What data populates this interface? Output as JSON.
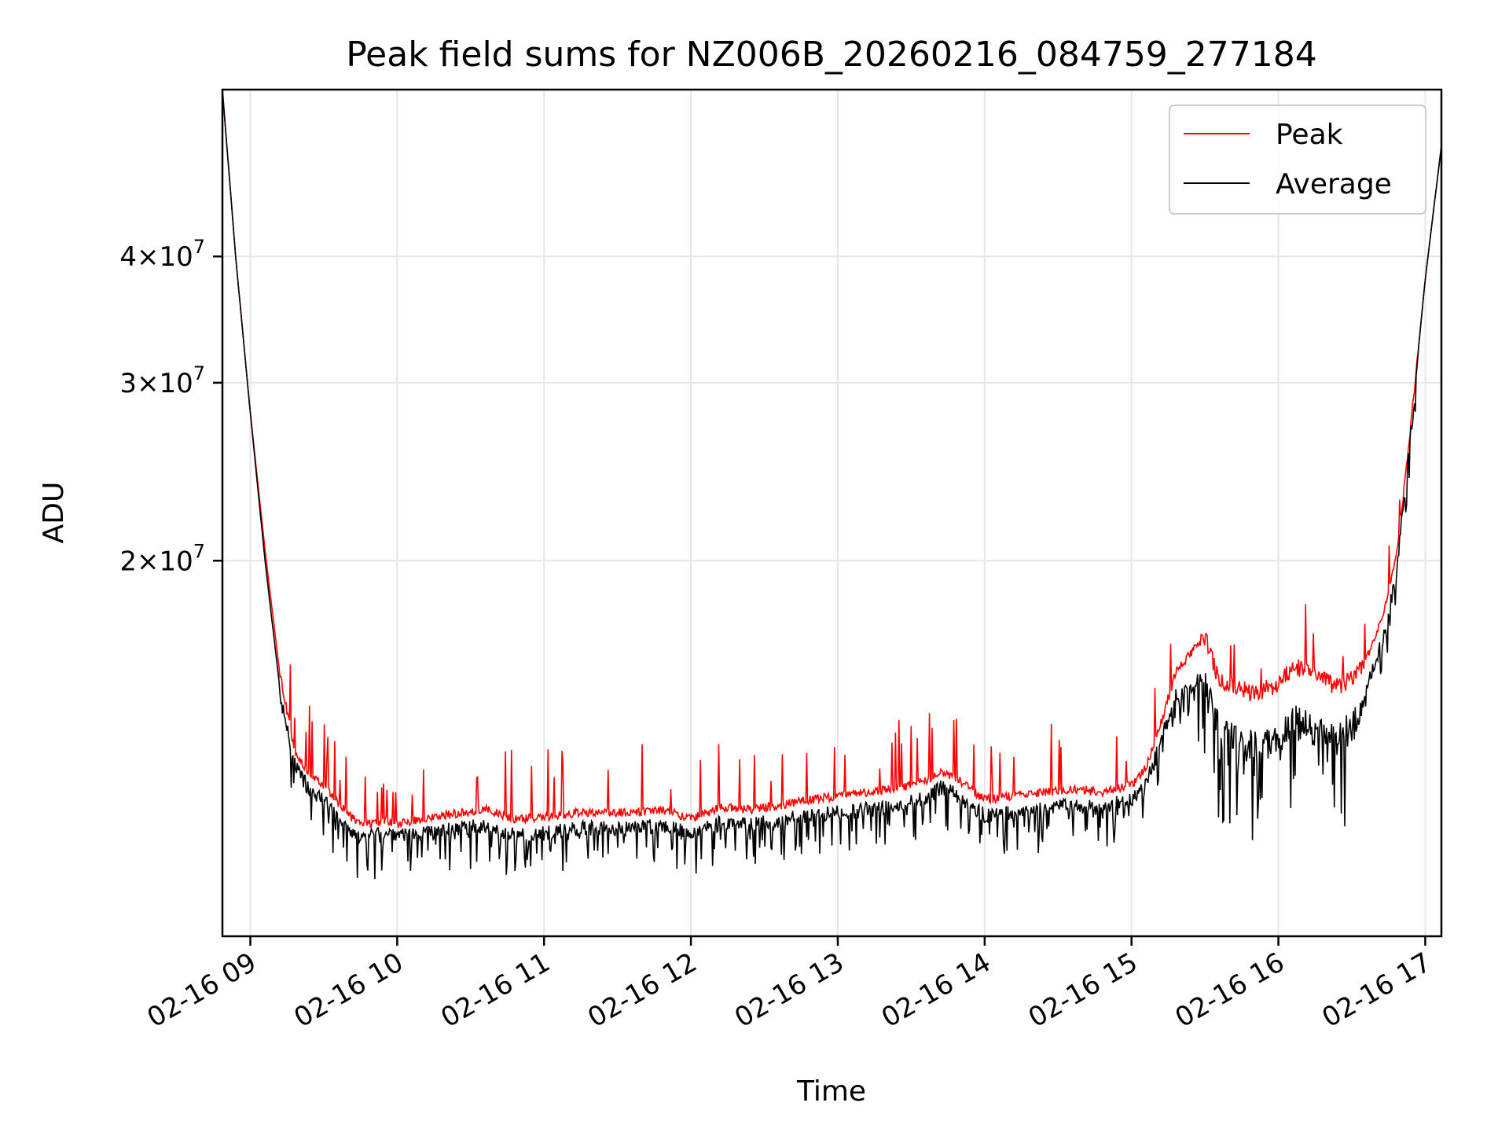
{
  "chart_data": {
    "type": "line",
    "title": "Peak field sums for NZ006B_20260216_084759_277184",
    "xlabel": "Time",
    "ylabel": "ADU",
    "yscale": "log",
    "grid": true,
    "legend_position": "upper right",
    "x_unit": "hours (2026-02-16)",
    "xlim": [
      8.81,
      17.11
    ],
    "ylim": [
      8500000,
      58500000
    ],
    "x_ticks": [
      9,
      10,
      11,
      12,
      13,
      14,
      15,
      16,
      17
    ],
    "x_tick_labels": [
      "02-16 09",
      "02-16 10",
      "02-16 11",
      "02-16 12",
      "02-16 13",
      "02-16 14",
      "02-16 15",
      "02-16 16",
      "02-16 17"
    ],
    "y_ticks": [
      20000000,
      30000000,
      40000000
    ],
    "y_tick_labels": [
      {
        "mant": "2",
        "exp": "7"
      },
      {
        "mant": "3",
        "exp": "7"
      },
      {
        "mant": "4",
        "exp": "7"
      }
    ],
    "series": [
      {
        "name": "Peak",
        "color": "#ff0000",
        "x": [
          8.81,
          8.9,
          9.0,
          9.1,
          9.2,
          9.3,
          9.4,
          9.5,
          9.6,
          9.7,
          9.8,
          9.9,
          10.0,
          10.2,
          10.4,
          10.6,
          10.8,
          11.0,
          11.2,
          11.4,
          11.6,
          11.8,
          12.0,
          12.2,
          12.4,
          12.6,
          12.8,
          13.0,
          13.2,
          13.4,
          13.6,
          13.7,
          13.8,
          14.0,
          14.2,
          14.4,
          14.6,
          14.8,
          15.0,
          15.1,
          15.2,
          15.3,
          15.4,
          15.5,
          15.6,
          15.8,
          16.0,
          16.1,
          16.2,
          16.3,
          16.4,
          16.5,
          16.6,
          16.7,
          16.8,
          16.9,
          17.0,
          17.11
        ],
        "y": [
          58500000,
          40000000,
          28000000,
          20500000,
          15500000,
          13000000,
          12300000,
          12000000,
          11500000,
          11100000,
          11000000,
          11050000,
          11000000,
          11100000,
          11250000,
          11350000,
          11100000,
          11150000,
          11250000,
          11300000,
          11250000,
          11350000,
          11100000,
          11400000,
          11350000,
          11450000,
          11600000,
          11700000,
          11800000,
          11900000,
          12100000,
          12400000,
          12200000,
          11600000,
          11700000,
          11800000,
          11900000,
          11800000,
          12000000,
          12500000,
          13800000,
          15500000,
          16200000,
          16800000,
          15200000,
          14800000,
          15000000,
          15800000,
          15500000,
          15300000,
          15000000,
          15300000,
          16000000,
          17500000,
          20000000,
          27000000,
          38000000,
          51500000
        ]
      },
      {
        "name": "Average",
        "color": "#000000",
        "x": [
          8.81,
          8.9,
          9.0,
          9.1,
          9.2,
          9.3,
          9.4,
          9.5,
          9.6,
          9.7,
          9.8,
          9.9,
          10.0,
          10.2,
          10.4,
          10.6,
          10.8,
          11.0,
          11.2,
          11.4,
          11.6,
          11.8,
          12.0,
          12.2,
          12.4,
          12.6,
          12.8,
          13.0,
          13.2,
          13.4,
          13.6,
          13.7,
          13.8,
          14.0,
          14.2,
          14.4,
          14.6,
          14.8,
          15.0,
          15.1,
          15.2,
          15.3,
          15.4,
          15.5,
          15.6,
          15.8,
          16.0,
          16.1,
          16.2,
          16.3,
          16.4,
          16.5,
          16.6,
          16.7,
          16.8,
          16.9,
          17.0,
          17.11
        ],
        "y": [
          58500000,
          40000000,
          28000000,
          20000000,
          15000000,
          12800000,
          12100000,
          11800000,
          11300000,
          10900000,
          10850000,
          10900000,
          10850000,
          10950000,
          11050000,
          11150000,
          10900000,
          10950000,
          11050000,
          11100000,
          11050000,
          11150000,
          10900000,
          11200000,
          11150000,
          11250000,
          11400000,
          11450000,
          11550000,
          11650000,
          11850000,
          12150000,
          11950000,
          11400000,
          11450000,
          11550000,
          11650000,
          11600000,
          11800000,
          12300000,
          13500000,
          15000000,
          15300000,
          15600000,
          14000000,
          13600000,
          13900000,
          14400000,
          14300000,
          14100000,
          13900000,
          14200000,
          15200000,
          16800000,
          19500000,
          27000000,
          38000000,
          51500000
        ]
      }
    ]
  }
}
